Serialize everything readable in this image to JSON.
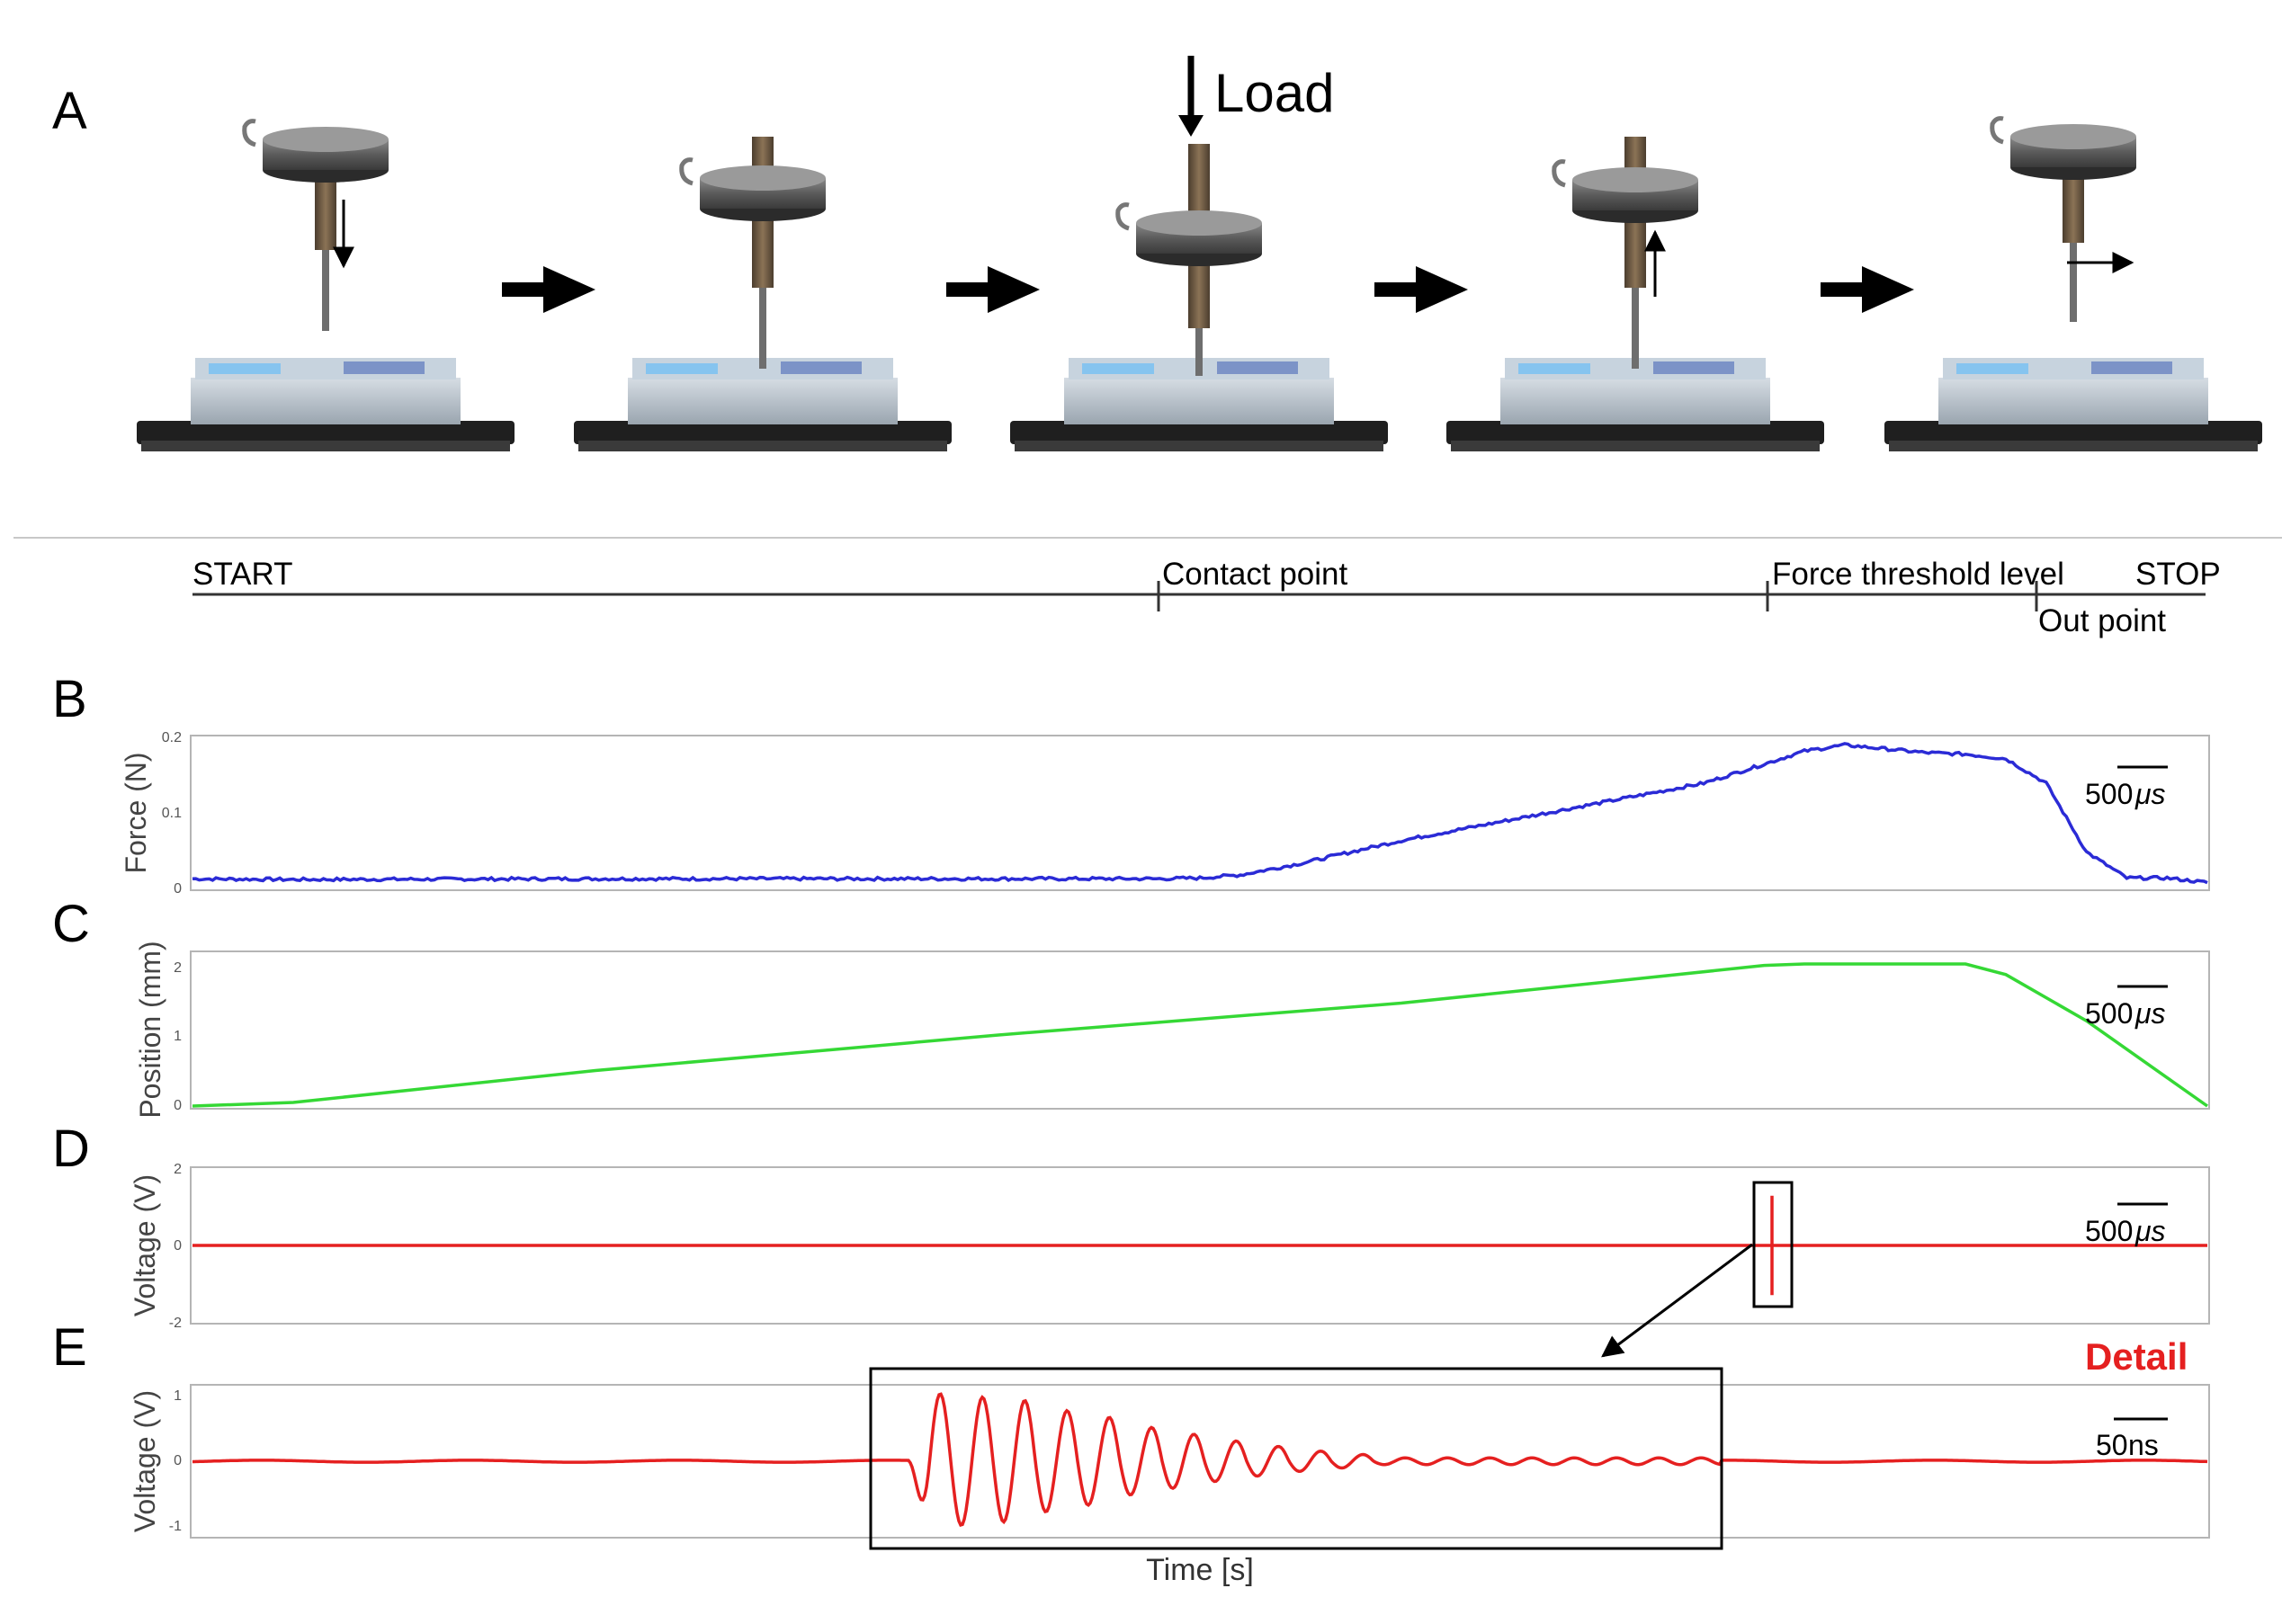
{
  "panel_letters": [
    "A",
    "B",
    "C",
    "D",
    "E"
  ],
  "panel_a": {
    "load_label": "Load",
    "stage_icons": [
      "probe-descend-icon",
      "probe-lowered-icon",
      "probe-loaded-icon",
      "probe-rise-icon",
      "probe-move-out-icon"
    ]
  },
  "timeline": {
    "start": "START",
    "contact": "Contact point",
    "threshold": "Force threshold level",
    "stop": "STOP",
    "out": "Out point"
  },
  "charts": {
    "B": {
      "ylabel": "Force (N)",
      "yticks": [
        "0.2",
        "0.1",
        "0"
      ],
      "scale": "500",
      "unit": "μs",
      "color": "#2b2bd6"
    },
    "C": {
      "ylabel": "Position (mm)",
      "yticks": [
        "2",
        "1",
        "0"
      ],
      "scale": "500",
      "unit": "μs",
      "color": "#35d835"
    },
    "D": {
      "ylabel": "Voltage (V)",
      "yticks": [
        "2",
        "0",
        "-2"
      ],
      "scale": "500",
      "unit": "μs",
      "color": "#e52020"
    },
    "E": {
      "ylabel": "Voltage (V)",
      "yticks": [
        "1",
        "0",
        "-1"
      ],
      "scale": "50",
      "unit": "ns",
      "color": "#e52020",
      "detail_label": "Detail"
    }
  },
  "xlabel": "Time [s]",
  "chart_data": [
    {
      "type": "line",
      "panel": "B",
      "ylabel": "Force (N)",
      "ylim": [
        0,
        0.2
      ],
      "x_fraction": [
        0,
        0.05,
        0.2,
        0.4,
        0.5,
        0.48,
        0.52,
        0.55,
        0.6,
        0.65,
        0.7,
        0.75,
        0.78,
        0.8,
        0.82,
        0.84,
        0.86,
        0.88,
        0.9,
        0.92,
        0.94,
        0.96,
        0.98,
        1.0
      ],
      "y": [
        0.015,
        0.014,
        0.015,
        0.015,
        0.016,
        0.015,
        0.02,
        0.035,
        0.065,
        0.09,
        0.115,
        0.14,
        0.165,
        0.182,
        0.19,
        0.185,
        0.18,
        0.178,
        0.172,
        0.14,
        0.05,
        0.016,
        0.016,
        0.01
      ]
    },
    {
      "type": "line",
      "panel": "C",
      "ylabel": "Position (mm)",
      "ylim": [
        0,
        2
      ],
      "x_fraction": [
        0,
        0.05,
        0.2,
        0.4,
        0.6,
        0.72,
        0.78,
        0.8,
        0.86,
        0.88,
        0.9,
        0.94,
        0.98,
        1.0
      ],
      "y": [
        0,
        0.05,
        0.5,
        1.0,
        1.45,
        1.8,
        1.98,
        2.0,
        2.0,
        2.0,
        1.85,
        1.2,
        0.4,
        0
      ]
    },
    {
      "type": "line",
      "panel": "D",
      "ylabel": "Voltage (V)",
      "ylim": [
        -2,
        2
      ],
      "x_fraction": [
        0,
        0.78,
        0.781,
        0.782,
        0.783,
        1.0
      ],
      "y": [
        0,
        0,
        1.3,
        -1.3,
        0,
        0
      ]
    },
    {
      "type": "line",
      "panel": "E",
      "ylabel": "Voltage (V)",
      "ylim": [
        -1,
        1
      ],
      "burst_peaks": [
        1.0,
        0.95,
        0.9,
        0.75,
        0.65,
        0.5,
        0.4,
        0.3,
        0.22,
        0.15,
        0.1,
        0.05
      ]
    }
  ]
}
